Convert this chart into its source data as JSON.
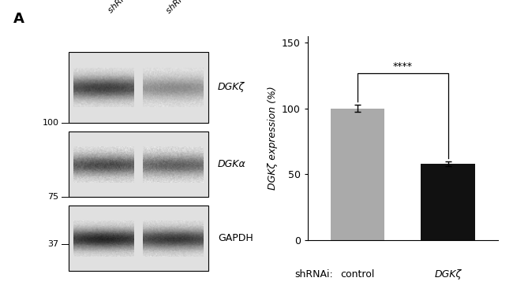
{
  "panel_label": "A",
  "bar_categories": [
    "control",
    "DGKζ"
  ],
  "bar_values": [
    100,
    58
  ],
  "bar_errors": [
    2.5,
    2.0
  ],
  "bar_colors": [
    "#aaaaaa",
    "#111111"
  ],
  "ylabel": "DGKζ expression (%)",
  "xlabel": "shRNAi:",
  "ylim": [
    0,
    155
  ],
  "yticks": [
    0,
    50,
    100,
    150
  ],
  "significance": "****",
  "wb_labels": [
    "DGKζ",
    "DGKα",
    "GAPDH"
  ],
  "wb_mw": [
    "100",
    "75",
    "37"
  ],
  "col_labels": [
    "shRNAi control",
    "shRNAi DGKζ"
  ],
  "background_color": "#ffffff"
}
